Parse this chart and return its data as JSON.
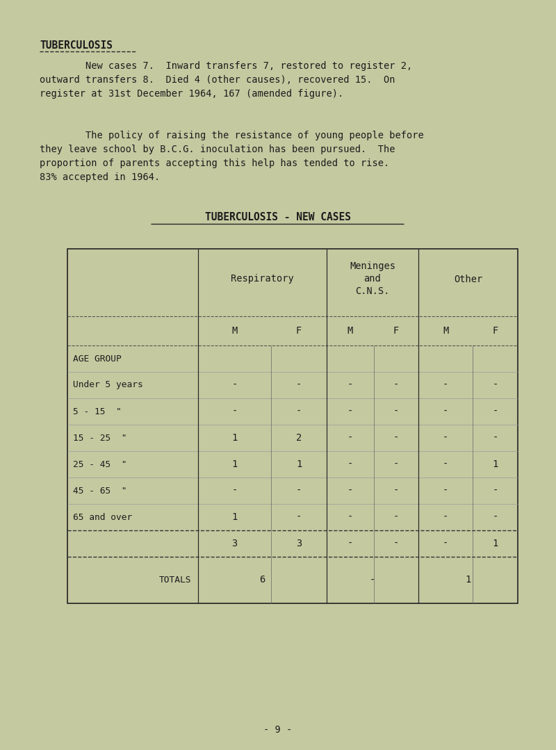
{
  "bg_color": "#c5c9a0",
  "title": "TUBERCULOSIS",
  "para1_indent": "        New cases 7.  Inward transfers 7, restored to register 2,\noutward transfers 8.  Died 4 (other causes), recovered 15.  On\nregister at 31st December 1964, 167 (amended figure).",
  "para2_indent": "        The policy of raising the resistance of young people before\nthey leave school by B.C.G. inoculation has been pursued.  The\nproportion of parents accepting this help has tended to rise.\n83% accepted in 1964.",
  "table_title": "TUBERCULOSIS - NEW CASES",
  "sub_headers": [
    "M",
    "F",
    "M",
    "F",
    "M",
    "F"
  ],
  "age_groups": [
    "AGE GROUP",
    "Under 5 years",
    "5 - 15  \"",
    "15 - 25  \"",
    "25 - 45  \"",
    "45 - 65  \"",
    "65 and over"
  ],
  "table_data": [
    [
      "-",
      "-",
      "-",
      "-",
      "-",
      "-"
    ],
    [
      "-",
      "-",
      "-",
      "-",
      "-",
      "-"
    ],
    [
      "1",
      "2",
      "-",
      "-",
      "-",
      "-"
    ],
    [
      "1",
      "1",
      "-",
      "-",
      "-",
      "1"
    ],
    [
      "-",
      "-",
      "-",
      "-",
      "-",
      "-"
    ],
    [
      "1",
      "-",
      "-",
      "-",
      "-",
      "-"
    ]
  ],
  "subtotals": [
    "3",
    "3",
    "-",
    "-",
    "-",
    "1"
  ],
  "totals_label": "TOTALS",
  "totals_resp": "6",
  "totals_mening": "-",
  "totals_other": "1",
  "page_number": "- 9 -"
}
